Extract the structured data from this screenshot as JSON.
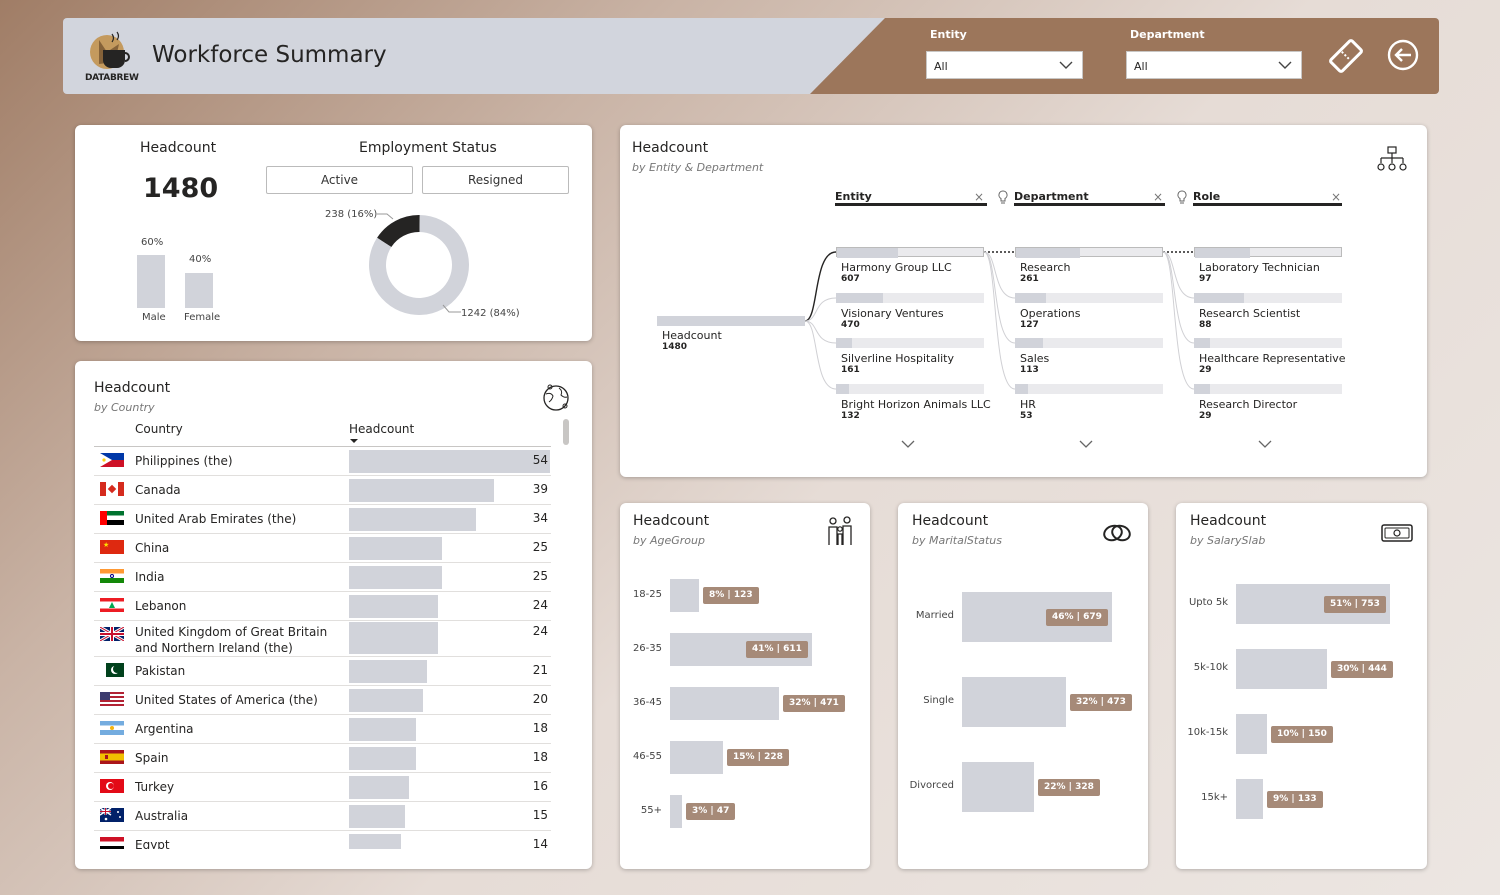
{
  "header": {
    "title": "Workforce Summary",
    "logo_text": "DATABREW",
    "entity_label": "Entity",
    "entity_value": "All",
    "department_label": "Department",
    "department_value": "All",
    "icons": [
      "ticket-icon",
      "back-arrow-icon"
    ]
  },
  "summary": {
    "headcount_title": "Headcount",
    "headcount_value": "1480",
    "gender": [
      {
        "label": "Male",
        "pct_label": "60%",
        "value": 0.6
      },
      {
        "label": "Female",
        "pct_label": "40%",
        "value": 0.4
      }
    ],
    "status_title": "Employment Status",
    "status_buttons": [
      "Active",
      "Resigned"
    ],
    "donut": [
      {
        "label": "238 (16%)",
        "value": 238,
        "color": "#252423"
      },
      {
        "label": "1242 (84%)",
        "value": 1242,
        "color": "#d1d3da"
      }
    ]
  },
  "country": {
    "title": "Headcount",
    "subtitle": "by Country",
    "col_country": "Country",
    "col_headcount": "Headcount",
    "max": 54,
    "rows": [
      {
        "name": "Philippines (the)",
        "value": 54,
        "flag": "ph"
      },
      {
        "name": "Canada",
        "value": 39,
        "flag": "ca"
      },
      {
        "name": "United Arab Emirates (the)",
        "value": 34,
        "flag": "ae"
      },
      {
        "name": "China",
        "value": 25,
        "flag": "cn"
      },
      {
        "name": "India",
        "value": 25,
        "flag": "in"
      },
      {
        "name": "Lebanon",
        "value": 24,
        "flag": "lb"
      },
      {
        "name": "United Kingdom of Great Britain and Northern Ireland (the)",
        "value": 24,
        "flag": "gb"
      },
      {
        "name": "Pakistan",
        "value": 21,
        "flag": "pk"
      },
      {
        "name": "United States of America (the)",
        "value": 20,
        "flag": "us"
      },
      {
        "name": "Argentina",
        "value": 18,
        "flag": "ar"
      },
      {
        "name": "Spain",
        "value": 18,
        "flag": "es"
      },
      {
        "name": "Turkey",
        "value": 16,
        "flag": "tr"
      },
      {
        "name": "Australia",
        "value": 15,
        "flag": "au"
      },
      {
        "name": "Egypt",
        "value": 14,
        "flag": "eg"
      }
    ]
  },
  "decomp": {
    "title": "Headcount",
    "subtitle": "by Entity & Department",
    "root_label": "Headcount",
    "root_value": "1480",
    "levels": [
      "Entity",
      "Department",
      "Role"
    ],
    "entity": [
      {
        "name": "Harmony Group LLC",
        "value": 607
      },
      {
        "name": "Visionary Ventures",
        "value": 470
      },
      {
        "name": "Silverline Hospitality",
        "value": 161
      },
      {
        "name": "Bright Horizon Animals LLC",
        "value": 132
      }
    ],
    "department": [
      {
        "name": "Research",
        "value": 261
      },
      {
        "name": "Operations",
        "value": 127
      },
      {
        "name": "Sales",
        "value": 113
      },
      {
        "name": "HR",
        "value": 53
      }
    ],
    "role": [
      {
        "name": "Laboratory Technician",
        "value": 97
      },
      {
        "name": "Research Scientist",
        "value": 88
      },
      {
        "name": "Healthcare Representative",
        "value": 29
      },
      {
        "name": "Research Director",
        "value": 29
      }
    ]
  },
  "age": {
    "title": "Headcount",
    "subtitle": "by AgeGroup",
    "max": 611,
    "bars": [
      {
        "cat": "18-25",
        "value": 123,
        "label": "8% | 123"
      },
      {
        "cat": "26-35",
        "value": 611,
        "label": "41% | 611"
      },
      {
        "cat": "36-45",
        "value": 471,
        "label": "32% | 471"
      },
      {
        "cat": "46-55",
        "value": 228,
        "label": "15% | 228"
      },
      {
        "cat": "55+",
        "value": 47,
        "label": "3% | 47"
      }
    ]
  },
  "marital": {
    "title": "Headcount",
    "subtitle": "by MaritalStatus",
    "max": 679,
    "bars": [
      {
        "cat": "Married",
        "value": 679,
        "label": "46% | 679"
      },
      {
        "cat": "Single",
        "value": 473,
        "label": "32% | 473"
      },
      {
        "cat": "Divorced",
        "value": 328,
        "label": "22% | 328"
      }
    ]
  },
  "salary": {
    "title": "Headcount",
    "subtitle": "by SalarySlab",
    "max": 753,
    "bars": [
      {
        "cat": "Upto 5k",
        "value": 753,
        "label": "51% | 753"
      },
      {
        "cat": "5k-10k",
        "value": 444,
        "label": "30% | 444"
      },
      {
        "cat": "10k-15k",
        "value": 150,
        "label": "10% | 150"
      },
      {
        "cat": "15k+",
        "value": 133,
        "label": "9% | 133"
      }
    ]
  }
}
